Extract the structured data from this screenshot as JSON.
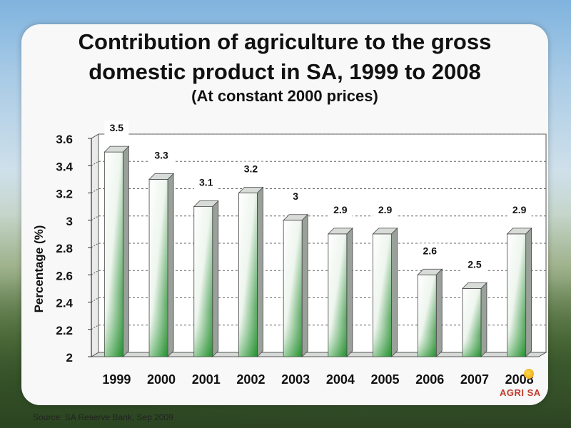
{
  "slide": {
    "title_line1": "Contribution of agriculture to the gross",
    "title_line2": "domestic product in SA, 1999 to 2008",
    "subtitle": "(At constant 2000 prices)",
    "source": "Source:  SA  Reserve Bank, Sep 2009",
    "logo_text": "AGRI SA"
  },
  "chart_data": {
    "type": "bar",
    "title": "Contribution of agriculture to the gross domestic product in SA, 1999 to 2008",
    "subtitle": "(At constant 2000 prices)",
    "xlabel": "",
    "ylabel": "Percentage (%)",
    "categories": [
      "1999",
      "2000",
      "2001",
      "2002",
      "2003",
      "2004",
      "2005",
      "2006",
      "2007",
      "2008"
    ],
    "values": [
      3.5,
      3.3,
      3.1,
      3.2,
      3,
      2.9,
      2.9,
      2.6,
      2.5,
      2.9
    ],
    "value_labels": [
      "3.5",
      "3.3",
      "3.1",
      "3.2",
      "3",
      "2.9",
      "2.9",
      "2.6",
      "2.5",
      "2.9"
    ],
    "ylim": [
      2,
      3.6
    ],
    "yticks": [
      "2",
      "2.2",
      "2.4",
      "2.6",
      "2.8",
      "3",
      "3.2",
      "3.4",
      "3.6"
    ],
    "grid": true,
    "legend": "none",
    "colors": {
      "bar_light": "#ffffff",
      "bar_dark": "#1f8a2a",
      "bar_top": "#d8dcd8",
      "bar_side": "#9aa09a"
    }
  }
}
